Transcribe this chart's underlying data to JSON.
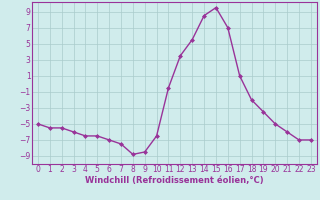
{
  "x": [
    0,
    1,
    2,
    3,
    4,
    5,
    6,
    7,
    8,
    9,
    10,
    11,
    12,
    13,
    14,
    15,
    16,
    17,
    18,
    19,
    20,
    21,
    22,
    23
  ],
  "y": [
    -5.0,
    -5.5,
    -5.5,
    -6.0,
    -6.5,
    -6.5,
    -7.0,
    -7.5,
    -8.8,
    -8.5,
    -6.5,
    -0.5,
    3.5,
    5.5,
    8.5,
    9.5,
    7.0,
    1.0,
    -2.0,
    -3.5,
    -5.0,
    -6.0,
    -7.0,
    -7.0
  ],
  "line_color": "#993399",
  "marker": "D",
  "marker_size": 2.0,
  "line_width": 1.0,
  "bg_color": "#d0ecec",
  "grid_color": "#aacccc",
  "xlabel": "Windchill (Refroidissement éolien,°C)",
  "xlabel_fontsize": 6.0,
  "xlabel_color": "#993399",
  "yticks": [
    -9,
    -7,
    -5,
    -3,
    -1,
    1,
    3,
    5,
    7,
    9
  ],
  "xticks": [
    0,
    1,
    2,
    3,
    4,
    5,
    6,
    7,
    8,
    9,
    10,
    11,
    12,
    13,
    14,
    15,
    16,
    17,
    18,
    19,
    20,
    21,
    22,
    23
  ],
  "xlim": [
    -0.5,
    23.5
  ],
  "ylim": [
    -10.0,
    10.2
  ],
  "tick_fontsize": 5.5,
  "tick_color": "#993399",
  "spine_color": "#993399"
}
